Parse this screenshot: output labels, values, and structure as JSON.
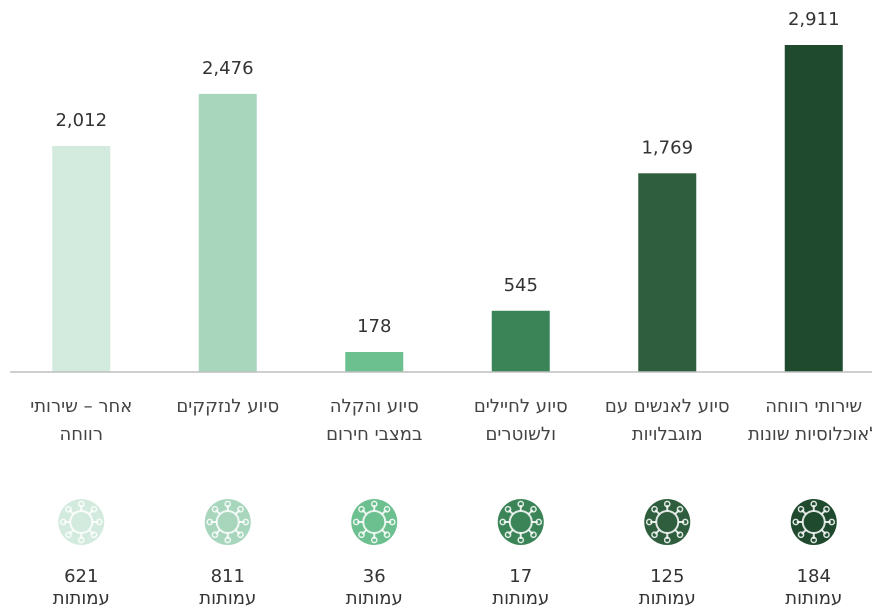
{
  "chart_data": {
    "type": "bar",
    "direction": "rtl",
    "categories": [
      "שירותי רווחה לאוכלוסיות שונות",
      "סיוע לאנשים עם מוגבלויות",
      "סיוע לחיילים ולשוטרים",
      "סיוע והקלה במצבי חירום",
      "סיוע לנזקקים",
      "אחר – שירותי רווחה"
    ],
    "values": [
      2911,
      1769,
      545,
      178,
      2476,
      2012
    ],
    "value_labels": [
      "2,911",
      "1,769",
      "545",
      "178",
      "2,476",
      "2,012"
    ],
    "colors": [
      "#1f4a2e",
      "#2e5e3d",
      "#3b8457",
      "#6cbf8e",
      "#a7d6bd",
      "#d3ebde"
    ],
    "ylim": [
      0,
      3000
    ],
    "org_counts": [
      184,
      125,
      17,
      36,
      811,
      621
    ],
    "org_unit": "עמותות"
  }
}
